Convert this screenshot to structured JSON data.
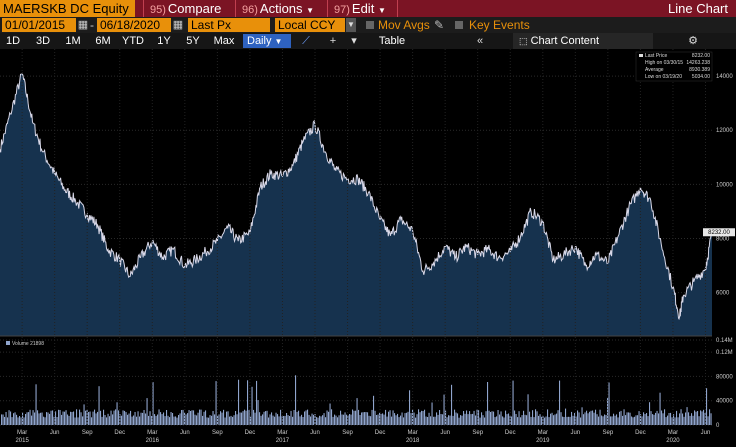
{
  "toolbar": {
    "ticker": "MAERSKB DC Equity",
    "compare_num": "95)",
    "compare_label": "Compare",
    "actions_num": "96)",
    "actions_label": "Actions",
    "edit_num": "97)",
    "edit_label": "Edit",
    "title": "Line Chart"
  },
  "settings": {
    "start_date": "01/01/2015",
    "end_date": "06/18/2020",
    "field": "Last Px",
    "currency": "Local CCY",
    "mov_avgs": "Mov Avgs",
    "key_events": "Key Events"
  },
  "ranges": [
    "1D",
    "3D",
    "1M",
    "6M",
    "YTD",
    "1Y",
    "5Y",
    "Max"
  ],
  "frequency": "Daily",
  "table_label": "Table",
  "chart_content_label": "Chart Content",
  "legend": {
    "last_price": "Last Price",
    "last_price_val": "8232.00",
    "high": "High on 03/30/15",
    "high_val": "14263.238",
    "average": "Average",
    "average_val": "8930.389",
    "low": "Low on 03/19/20",
    "low_val": "5034.00"
  },
  "last_price_tag": "8232.00",
  "volume_legend": "Volume 21898",
  "colors": {
    "accent": "#e8900a",
    "header": "#7b1424",
    "line": "#d8d8e8",
    "fill": "#16324e",
    "volume": "#8fa4cc"
  },
  "chart_data": {
    "type": "area",
    "x_tick_labels": [
      "Mar",
      "Jun",
      "Sep",
      "Dec",
      "Mar",
      "Jun",
      "Sep",
      "Dec",
      "Mar",
      "Jun",
      "Sep",
      "Dec",
      "Mar",
      "Jun",
      "Sep",
      "Dec",
      "Mar",
      "Jun",
      "Sep",
      "Dec",
      "Mar",
      "Jun"
    ],
    "x_tick_pos": [
      2015.17,
      2015.42,
      2015.67,
      2015.92,
      2016.17,
      2016.42,
      2016.67,
      2016.92,
      2017.17,
      2017.42,
      2017.67,
      2017.92,
      2018.17,
      2018.42,
      2018.67,
      2018.92,
      2019.17,
      2019.42,
      2019.67,
      2019.92,
      2020.17,
      2020.42
    ],
    "year_labels": [
      "2015",
      "2016",
      "2017",
      "2018",
      "2019",
      "2020"
    ],
    "year_pos": [
      2015.17,
      2016.17,
      2017.17,
      2018.17,
      2019.17,
      2020.17
    ],
    "xlim": [
      2015.0,
      2020.47
    ],
    "price": {
      "ylim": [
        4400,
        15000
      ],
      "y_ticks": [
        6000,
        8000,
        10000,
        12000,
        14000
      ],
      "y_tick_labels": [
        "6000",
        "8000",
        "10000",
        "12000",
        "14000"
      ],
      "x": [
        2015.0,
        2015.08,
        2015.17,
        2015.25,
        2015.33,
        2015.42,
        2015.5,
        2015.58,
        2015.67,
        2015.75,
        2015.83,
        2015.92,
        2016.0,
        2016.08,
        2016.17,
        2016.25,
        2016.33,
        2016.42,
        2016.5,
        2016.58,
        2016.67,
        2016.75,
        2016.83,
        2016.92,
        2017.0,
        2017.08,
        2017.17,
        2017.25,
        2017.33,
        2017.42,
        2017.5,
        2017.58,
        2017.67,
        2017.75,
        2017.83,
        2017.92,
        2018.0,
        2018.08,
        2018.17,
        2018.25,
        2018.33,
        2018.42,
        2018.5,
        2018.58,
        2018.67,
        2018.75,
        2018.83,
        2018.92,
        2019.0,
        2019.08,
        2019.17,
        2019.25,
        2019.33,
        2019.42,
        2019.5,
        2019.58,
        2019.67,
        2019.75,
        2019.83,
        2019.92,
        2020.0,
        2020.08,
        2020.17,
        2020.22,
        2020.25,
        2020.33,
        2020.42,
        2020.47
      ],
      "y": [
        11300,
        12600,
        14100,
        12300,
        11200,
        10400,
        9800,
        9400,
        8900,
        8500,
        7600,
        7200,
        6600,
        7300,
        7900,
        7300,
        7600,
        7000,
        7200,
        7500,
        7900,
        8400,
        7900,
        8200,
        9900,
        10400,
        10300,
        10700,
        11600,
        12200,
        11200,
        10500,
        10200,
        10200,
        9700,
        8700,
        8100,
        8700,
        8300,
        6800,
        7100,
        7700,
        7300,
        7700,
        7400,
        7600,
        7300,
        7500,
        8100,
        9000,
        8600,
        7200,
        7400,
        7700,
        7000,
        7400,
        7100,
        8100,
        9100,
        9900,
        9400,
        7800,
        6200,
        5100,
        5900,
        6400,
        6900,
        8232
      ]
    },
    "volume": {
      "ylim": [
        0,
        140000
      ],
      "y_ticks": [
        0,
        40000,
        80000,
        120000,
        140000
      ],
      "y_tick_labels": [
        "0",
        "40000",
        "80000",
        "0.12M",
        "0.14M"
      ]
    }
  }
}
